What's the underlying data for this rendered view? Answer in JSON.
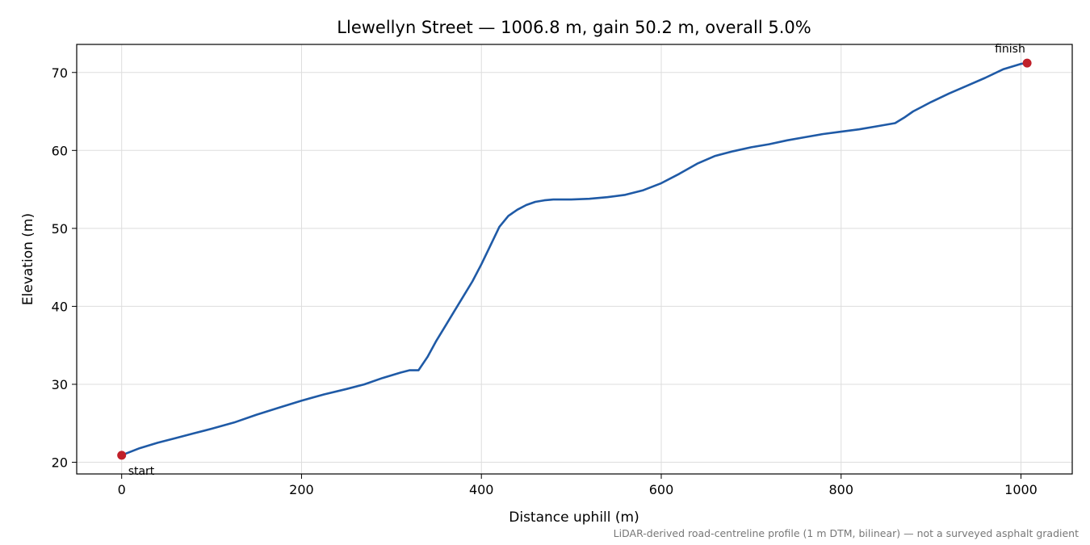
{
  "chart_data": {
    "type": "line",
    "title": "Llewellyn Street — 1006.8 m, gain 50.2 m, overall 5.0%",
    "xlabel": "Distance uphill (m)",
    "ylabel": "Elevation (m)",
    "xlim": [
      -50,
      1057
    ],
    "ylim": [
      18.5,
      73.6
    ],
    "x_ticks": [
      0,
      200,
      400,
      600,
      800,
      1000
    ],
    "y_ticks": [
      20,
      30,
      40,
      50,
      60,
      70
    ],
    "grid": true,
    "footnote": "LiDAR-derived road-centreline profile (1 m DTM, bilinear) — not a surveyed asphalt gradient",
    "series": [
      {
        "color": "#1f5aa6",
        "x": [
          0,
          20,
          40,
          60,
          80,
          100,
          125,
          150,
          175,
          200,
          225,
          250,
          270,
          290,
          310,
          320,
          330,
          340,
          350,
          360,
          370,
          380,
          390,
          400,
          410,
          420,
          430,
          440,
          450,
          460,
          470,
          480,
          500,
          520,
          540,
          560,
          580,
          600,
          620,
          640,
          660,
          680,
          700,
          720,
          740,
          760,
          780,
          800,
          820,
          840,
          860,
          870,
          880,
          900,
          920,
          940,
          960,
          980,
          1000,
          1006.8
        ],
        "y": [
          20.9,
          21.8,
          22.5,
          23.1,
          23.7,
          24.3,
          25.1,
          26.1,
          27.0,
          27.9,
          28.7,
          29.4,
          30.0,
          30.8,
          31.5,
          31.8,
          31.8,
          33.5,
          35.6,
          37.5,
          39.4,
          41.3,
          43.2,
          45.4,
          47.8,
          50.2,
          51.6,
          52.4,
          53.0,
          53.4,
          53.6,
          53.7,
          53.7,
          53.8,
          54.0,
          54.3,
          54.9,
          55.8,
          57.0,
          58.3,
          59.3,
          59.9,
          60.4,
          60.8,
          61.3,
          61.7,
          62.1,
          62.4,
          62.7,
          63.1,
          63.5,
          64.2,
          65.0,
          66.2,
          67.3,
          68.3,
          69.3,
          70.4,
          71.1,
          71.2
        ]
      }
    ],
    "markers": [
      {
        "label": "start",
        "x": 0,
        "y": 20.9,
        "color": "#c0202a"
      },
      {
        "label": "finish",
        "x": 1006.8,
        "y": 71.2,
        "color": "#c0202a"
      }
    ]
  }
}
